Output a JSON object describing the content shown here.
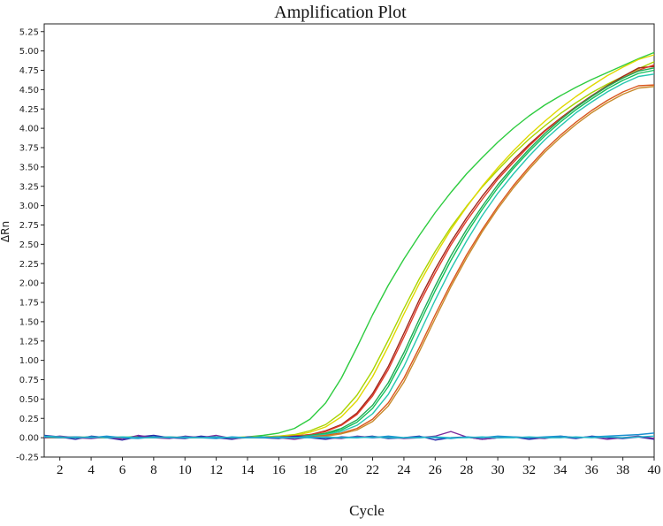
{
  "chart_data": {
    "type": "line",
    "title": "Amplification Plot",
    "xlabel": "Cycle",
    "ylabel": "ΔRn",
    "xlim": [
      1,
      40
    ],
    "ylim": [
      -0.25,
      5.35
    ],
    "x_ticks": [
      "2",
      "4",
      "6",
      "8",
      "10",
      "12",
      "14",
      "16",
      "18",
      "20",
      "22",
      "24",
      "26",
      "28",
      "30",
      "32",
      "34",
      "36",
      "38",
      "40"
    ],
    "y_ticks": [
      "-0.25",
      "0.00",
      "0.25",
      "0.50",
      "0.75",
      "1.00",
      "1.25",
      "1.50",
      "1.75",
      "2.00",
      "2.25",
      "2.50",
      "2.75",
      "3.00",
      "3.25",
      "3.50",
      "3.75",
      "4.00",
      "4.25",
      "4.50",
      "4.75",
      "5.00",
      "5.25"
    ],
    "grid": false,
    "legend": "none",
    "x": [
      1,
      2,
      3,
      4,
      5,
      6,
      7,
      8,
      9,
      10,
      11,
      12,
      13,
      14,
      15,
      16,
      17,
      18,
      19,
      20,
      21,
      22,
      23,
      24,
      25,
      26,
      27,
      28,
      29,
      30,
      31,
      32,
      33,
      34,
      35,
      36,
      37,
      38,
      39,
      40
    ],
    "series": [
      {
        "color": "#2ecc40",
        "values": [
          0.02,
          0.0,
          0.01,
          0.0,
          0.01,
          0.0,
          0.02,
          0.01,
          0.0,
          0.0,
          0.01,
          0.01,
          0.0,
          0.01,
          0.03,
          0.06,
          0.12,
          0.24,
          0.45,
          0.77,
          1.17,
          1.59,
          1.97,
          2.31,
          2.62,
          2.91,
          3.17,
          3.41,
          3.62,
          3.82,
          4.0,
          4.16,
          4.3,
          4.42,
          4.53,
          4.63,
          4.72,
          4.81,
          4.9,
          4.98
        ]
      },
      {
        "color": "#a8d400",
        "values": [
          0.01,
          0.0,
          0.0,
          0.01,
          0.0,
          0.0,
          0.01,
          0.01,
          0.0,
          0.0,
          0.0,
          0.0,
          0.0,
          0.0,
          0.01,
          0.02,
          0.04,
          0.09,
          0.17,
          0.32,
          0.55,
          0.87,
          1.26,
          1.67,
          2.06,
          2.41,
          2.72,
          2.99,
          3.24,
          3.46,
          3.67,
          3.86,
          4.03,
          4.19,
          4.33,
          4.46,
          4.57,
          4.67,
          4.77,
          4.86
        ]
      },
      {
        "color": "#e0d800",
        "values": [
          0.01,
          0.01,
          0.0,
          0.0,
          0.0,
          0.01,
          0.0,
          0.0,
          0.0,
          0.01,
          0.0,
          0.0,
          0.0,
          0.01,
          0.01,
          0.02,
          0.03,
          0.07,
          0.14,
          0.27,
          0.48,
          0.79,
          1.18,
          1.6,
          2.0,
          2.36,
          2.69,
          2.98,
          3.25,
          3.49,
          3.71,
          3.91,
          4.09,
          4.26,
          4.41,
          4.55,
          4.68,
          4.79,
          4.89,
          4.95
        ]
      },
      {
        "color": "#a0251b",
        "values": [
          0.0,
          0.01,
          0.0,
          0.0,
          0.0,
          0.0,
          0.0,
          0.0,
          0.0,
          0.0,
          0.0,
          0.0,
          0.0,
          0.0,
          0.0,
          0.01,
          0.02,
          0.04,
          0.09,
          0.17,
          0.32,
          0.57,
          0.92,
          1.35,
          1.79,
          2.18,
          2.53,
          2.84,
          3.12,
          3.37,
          3.59,
          3.79,
          3.97,
          4.13,
          4.28,
          4.42,
          4.55,
          4.67,
          4.78,
          4.8
        ]
      },
      {
        "color": "#e03c28",
        "values": [
          0.0,
          0.0,
          0.01,
          0.0,
          0.0,
          0.0,
          0.0,
          0.0,
          0.01,
          0.0,
          0.0,
          0.0,
          0.0,
          0.0,
          0.0,
          0.01,
          0.02,
          0.04,
          0.08,
          0.16,
          0.3,
          0.54,
          0.88,
          1.3,
          1.74,
          2.13,
          2.49,
          2.8,
          3.08,
          3.34,
          3.56,
          3.77,
          3.96,
          4.12,
          4.27,
          4.41,
          4.54,
          4.65,
          4.75,
          4.82
        ]
      },
      {
        "color": "#1faa55",
        "values": [
          0.0,
          0.0,
          0.0,
          0.01,
          0.0,
          0.0,
          0.0,
          0.01,
          0.0,
          0.0,
          0.0,
          0.0,
          0.0,
          0.0,
          0.0,
          0.01,
          0.01,
          0.03,
          0.06,
          0.12,
          0.23,
          0.42,
          0.71,
          1.1,
          1.54,
          1.96,
          2.35,
          2.69,
          2.99,
          3.27,
          3.51,
          3.73,
          3.93,
          4.11,
          4.27,
          4.41,
          4.54,
          4.65,
          4.74,
          4.78
        ]
      },
      {
        "color": "#11c05a",
        "values": [
          0.0,
          0.01,
          0.0,
          0.0,
          0.0,
          0.0,
          0.0,
          0.0,
          0.0,
          0.0,
          0.01,
          0.0,
          0.0,
          0.0,
          0.0,
          0.01,
          0.01,
          0.02,
          0.05,
          0.1,
          0.2,
          0.38,
          0.66,
          1.04,
          1.48,
          1.9,
          2.29,
          2.64,
          2.95,
          3.23,
          3.48,
          3.7,
          3.9,
          4.08,
          4.24,
          4.38,
          4.51,
          4.62,
          4.71,
          4.75
        ]
      },
      {
        "color": "#26c6b0",
        "values": [
          0.0,
          0.0,
          0.0,
          0.0,
          0.01,
          0.0,
          0.0,
          0.0,
          0.0,
          0.0,
          0.0,
          0.0,
          0.0,
          0.0,
          0.0,
          0.0,
          0.01,
          0.02,
          0.04,
          0.08,
          0.16,
          0.31,
          0.56,
          0.92,
          1.35,
          1.78,
          2.18,
          2.54,
          2.87,
          3.16,
          3.41,
          3.64,
          3.85,
          4.03,
          4.2,
          4.34,
          4.47,
          4.58,
          4.67,
          4.7
        ]
      },
      {
        "color": "#d9571e",
        "values": [
          0.0,
          0.0,
          0.0,
          0.0,
          0.0,
          0.0,
          0.0,
          0.0,
          0.0,
          0.0,
          0.0,
          0.0,
          0.0,
          0.0,
          0.0,
          0.0,
          0.01,
          0.01,
          0.03,
          0.06,
          0.12,
          0.24,
          0.45,
          0.77,
          1.17,
          1.59,
          1.99,
          2.36,
          2.69,
          2.99,
          3.26,
          3.5,
          3.72,
          3.91,
          4.08,
          4.23,
          4.36,
          4.47,
          4.55,
          4.56
        ]
      },
      {
        "color": "#c98a2a",
        "values": [
          0.0,
          0.0,
          0.0,
          0.0,
          0.0,
          0.0,
          0.0,
          0.0,
          0.0,
          0.0,
          0.0,
          0.0,
          0.0,
          0.0,
          0.0,
          0.0,
          0.0,
          0.01,
          0.02,
          0.05,
          0.1,
          0.21,
          0.41,
          0.72,
          1.12,
          1.54,
          1.95,
          2.32,
          2.66,
          2.96,
          3.23,
          3.47,
          3.69,
          3.88,
          4.05,
          4.2,
          4.33,
          4.44,
          4.52,
          4.54
        ]
      },
      {
        "color": "#2a2aa8",
        "values": [
          0.03,
          0.01,
          -0.02,
          0.02,
          0.0,
          -0.03,
          0.01,
          0.03,
          0.0,
          -0.01,
          0.02,
          0.0,
          -0.02,
          0.01,
          0.0,
          -0.01,
          0.02,
          0.0,
          -0.02,
          0.01,
          0.0,
          0.02,
          -0.01,
          0.0,
          0.02,
          -0.03,
          0.0,
          0.01,
          -0.02,
          0.0,
          0.01,
          -0.02,
          0.0,
          0.01,
          -0.01,
          0.02,
          0.0,
          -0.01,
          0.01,
          -0.02
        ]
      },
      {
        "color": "#7a2a9c",
        "values": [
          0.0,
          0.02,
          0.0,
          -0.01,
          0.01,
          -0.02,
          0.03,
          0.0,
          -0.01,
          0.02,
          0.0,
          0.03,
          -0.01,
          0.0,
          0.01,
          0.0,
          -0.02,
          0.01,
          0.0,
          -0.01,
          0.02,
          0.0,
          0.01,
          -0.01,
          0.0,
          0.02,
          0.08,
          0.01,
          -0.02,
          0.0,
          0.01,
          0.0,
          -0.01,
          0.02,
          0.0,
          0.01,
          -0.02,
          0.0,
          0.02,
          -0.01
        ]
      },
      {
        "color": "#1a8fd0",
        "values": [
          0.01,
          0.0,
          0.01,
          0.0,
          0.02,
          0.0,
          -0.01,
          0.01,
          0.0,
          0.01,
          0.0,
          -0.01,
          0.01,
          0.0,
          0.0,
          0.01,
          0.0,
          0.01,
          0.0,
          0.0,
          0.01,
          0.0,
          0.02,
          0.0,
          0.01,
          0.0,
          -0.01,
          0.01,
          0.0,
          0.02,
          0.01,
          0.0,
          0.01,
          0.02,
          0.0,
          0.01,
          0.02,
          0.03,
          0.04,
          0.06
        ]
      },
      {
        "color": "#22b8c8",
        "values": [
          0.02,
          0.01,
          0.0,
          0.01,
          0.0,
          0.01,
          0.0,
          0.0,
          0.01,
          0.0,
          0.0,
          0.01,
          0.0,
          0.0,
          0.01,
          0.0,
          0.0,
          0.0,
          0.01,
          0.0,
          0.0,
          0.01,
          0.0,
          0.0,
          0.0,
          0.01,
          0.0,
          0.0,
          0.01,
          0.0,
          0.0,
          0.01,
          0.0,
          0.0,
          0.01,
          0.0,
          0.01,
          0.0,
          0.01,
          0.02
        ]
      }
    ]
  }
}
